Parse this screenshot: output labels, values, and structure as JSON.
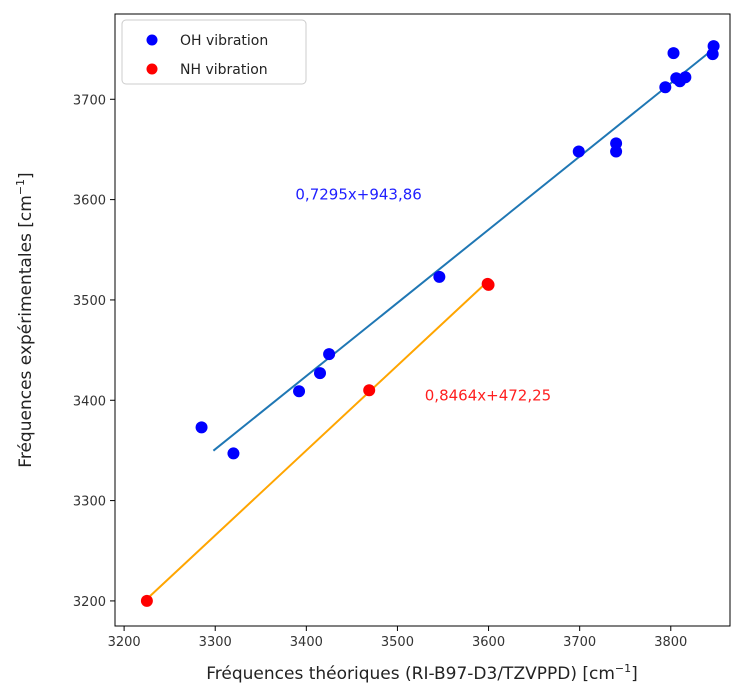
{
  "chart_data": {
    "type": "scatter",
    "xlabel": "Fréquences théoriques (RI-B97-D3/TZVPPD) [cm",
    "xlabel_sup": "−1",
    "xlabel_end": "]",
    "ylabel": "Fréquences expérimentales [cm",
    "ylabel_sup": "−1",
    "ylabel_end": "]",
    "xlim": [
      3190,
      3865
    ],
    "ylim": [
      3175,
      3785
    ],
    "xticks": [
      3200,
      3300,
      3400,
      3500,
      3600,
      3700,
      3800
    ],
    "yticks": [
      3200,
      3300,
      3400,
      3500,
      3600,
      3700
    ],
    "grid": false,
    "legend_position": "top-left",
    "series": [
      {
        "name": "OH vibration",
        "color": "#0000ff",
        "points": [
          [
            3285,
            3373
          ],
          [
            3320,
            3347
          ],
          [
            3392,
            3409
          ],
          [
            3415,
            3427
          ],
          [
            3425,
            3446
          ],
          [
            3546,
            3523
          ],
          [
            3699,
            3648
          ],
          [
            3740,
            3656
          ],
          [
            3740,
            3648
          ],
          [
            3794,
            3712
          ],
          [
            3803,
            3746
          ],
          [
            3806,
            3721
          ],
          [
            3810,
            3718
          ],
          [
            3816,
            3722
          ],
          [
            3846,
            3745
          ],
          [
            3847,
            3753
          ]
        ],
        "fit": {
          "label": "0,7295x+943,86",
          "color": "#1f77b4",
          "x_range": [
            3298,
            3848
          ],
          "label_color": "#1f1fff"
        }
      },
      {
        "name": "NH vibration",
        "color": "#ff0000",
        "points": [
          [
            3225,
            3200
          ],
          [
            3469,
            3410
          ],
          [
            3599,
            3516
          ],
          [
            3600,
            3515
          ]
        ],
        "fit": {
          "label": "0,8464x+472,25",
          "color": "#ffa500",
          "x_range": [
            3225,
            3600
          ],
          "label_color": "#ff1f1f"
        }
      }
    ],
    "annotations": [
      {
        "text": "0,7295x+943,86",
        "x": 3388,
        "y": 3600,
        "color": "#1f1fff"
      },
      {
        "text": "0,8464x+472,25",
        "x": 3530,
        "y": 3400,
        "color": "#ff1f1f"
      }
    ]
  }
}
